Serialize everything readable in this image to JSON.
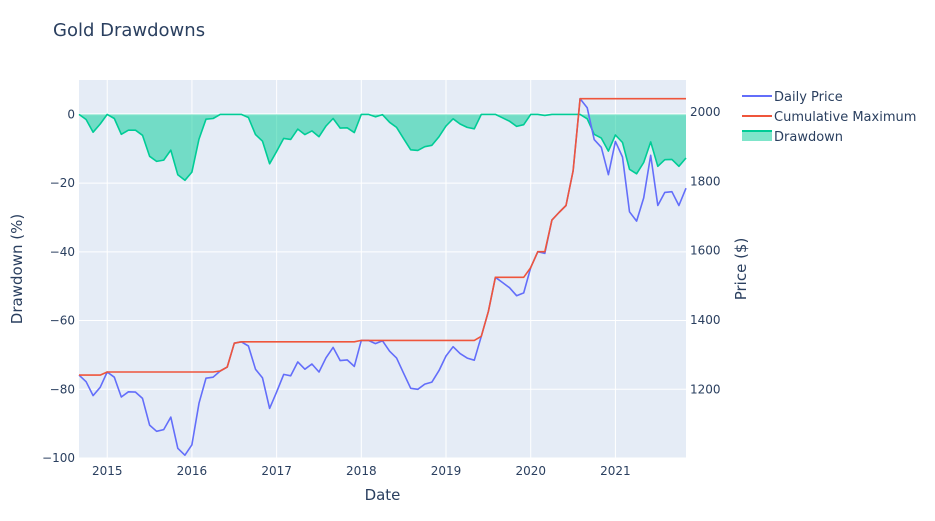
{
  "chart_data": {
    "type": "line",
    "title": "Gold Drawdowns",
    "xlabel": "Date",
    "ylabel": "Drawdown (%)",
    "y2label": "Price ($)",
    "x_ticks": [
      "2015",
      "2016",
      "2017",
      "2018",
      "2019",
      "2020",
      "2021"
    ],
    "y_ticks": [
      0,
      -20,
      -40,
      -60,
      -80,
      -100
    ],
    "y2_ticks": [
      2000,
      1800,
      1600,
      1400,
      1200
    ],
    "xlim": [
      "2014-09",
      "2021-11"
    ],
    "ylim": [
      -100,
      10
    ],
    "y2lim": [
      1002,
      2092
    ],
    "grid": true,
    "legend_position": "right",
    "colors": {
      "background": "#e5ecf6",
      "grid": "#ffffff",
      "daily_price": "#636efa",
      "cumulative_max": "#ef553b",
      "drawdown": "#00cc96",
      "drawdown_fill": "rgba(0,204,150,0.5)"
    },
    "dates": [
      "2014-09",
      "2014-10",
      "2014-11",
      "2014-12",
      "2015-01",
      "2015-02",
      "2015-03",
      "2015-04",
      "2015-05",
      "2015-06",
      "2015-07",
      "2015-08",
      "2015-09",
      "2015-10",
      "2015-11",
      "2015-12",
      "2016-01",
      "2016-02",
      "2016-03",
      "2016-04",
      "2016-05",
      "2016-06",
      "2016-07",
      "2016-08",
      "2016-09",
      "2016-10",
      "2016-11",
      "2016-12",
      "2017-01",
      "2017-02",
      "2017-03",
      "2017-04",
      "2017-05",
      "2017-06",
      "2017-07",
      "2017-08",
      "2017-09",
      "2017-10",
      "2017-11",
      "2017-12",
      "2018-01",
      "2018-02",
      "2018-03",
      "2018-04",
      "2018-05",
      "2018-06",
      "2018-07",
      "2018-08",
      "2018-09",
      "2018-10",
      "2018-11",
      "2018-12",
      "2019-01",
      "2019-02",
      "2019-03",
      "2019-04",
      "2019-05",
      "2019-06",
      "2019-07",
      "2019-08",
      "2019-09",
      "2019-10",
      "2019-11",
      "2019-12",
      "2020-01",
      "2020-02",
      "2020-03",
      "2020-04",
      "2020-05",
      "2020-06",
      "2020-07",
      "2020-08",
      "2020-09",
      "2020-10",
      "2020-11",
      "2020-12",
      "2021-01",
      "2021-02",
      "2021-03",
      "2021-04",
      "2021-05",
      "2021-06",
      "2021-07",
      "2021-08",
      "2021-09",
      "2021-10",
      "2021-11"
    ],
    "series": [
      {
        "name": "Daily Price",
        "axis": "y2",
        "values": [
          1241,
          1222,
          1182,
          1206,
          1250,
          1235,
          1178,
          1193,
          1192,
          1174,
          1097,
          1079,
          1084,
          1120,
          1030,
          1010,
          1040,
          1160,
          1232,
          1235,
          1253,
          1264,
          1333,
          1337,
          1325,
          1258,
          1233,
          1145,
          1192,
          1243,
          1239,
          1279,
          1258,
          1273,
          1250,
          1291,
          1321,
          1283,
          1285,
          1266,
          1341,
          1341,
          1332,
          1340,
          1310,
          1290,
          1246,
          1203,
          1200,
          1215,
          1221,
          1254,
          1296,
          1323,
          1303,
          1290,
          1284,
          1353,
          1425,
          1523,
          1508,
          1493,
          1470,
          1478,
          1551,
          1597,
          1592,
          1688,
          1710,
          1730,
          1830,
          2038,
          2012,
          1920,
          1898,
          1819,
          1915,
          1870,
          1712,
          1685,
          1752,
          1875,
          1730,
          1768,
          1770,
          1730,
          1780
        ]
      },
      {
        "name": "Cumulative Maximum",
        "axis": "y2",
        "values": [
          1241,
          1241,
          1241,
          1241,
          1250,
          1250,
          1250,
          1250,
          1250,
          1250,
          1250,
          1250,
          1250,
          1250,
          1250,
          1250,
          1250,
          1250,
          1250,
          1250,
          1253,
          1264,
          1333,
          1337,
          1337,
          1337,
          1337,
          1337,
          1337,
          1337,
          1337,
          1337,
          1337,
          1337,
          1337,
          1337,
          1337,
          1337,
          1337,
          1337,
          1341,
          1341,
          1341,
          1341,
          1341,
          1341,
          1341,
          1341,
          1341,
          1341,
          1341,
          1341,
          1341,
          1341,
          1341,
          1341,
          1341,
          1353,
          1425,
          1523,
          1523,
          1523,
          1523,
          1523,
          1551,
          1597,
          1597,
          1688,
          1710,
          1730,
          1830,
          2038,
          2038,
          2038,
          2038,
          2038,
          2038,
          2038,
          2038,
          2038,
          2038,
          2038,
          2038,
          2038,
          2038,
          2038,
          2038
        ]
      },
      {
        "name": "Drawdown",
        "axis": "y",
        "fill": "tozeroy",
        "values": [
          0,
          -1.5,
          -5.2,
          -2.8,
          0,
          -1.2,
          -5.8,
          -4.6,
          -4.6,
          -6.1,
          -12.2,
          -13.7,
          -13.3,
          -10.4,
          -17.6,
          -19.2,
          -16.8,
          -7.2,
          -1.4,
          -1.2,
          0,
          0,
          0,
          0,
          -0.9,
          -5.9,
          -7.8,
          -14.4,
          -10.8,
          -7.0,
          -7.3,
          -4.3,
          -5.9,
          -4.8,
          -6.5,
          -3.4,
          -1.2,
          -4.0,
          -3.9,
          -5.3,
          0,
          0,
          -0.7,
          -0.1,
          -2.3,
          -3.8,
          -7.1,
          -10.3,
          -10.5,
          -9.4,
          -9.0,
          -6.5,
          -3.4,
          -1.3,
          -2.8,
          -3.8,
          -4.2,
          0,
          0,
          0,
          -1.0,
          -2.0,
          -3.5,
          -3.0,
          0,
          0,
          -0.3,
          0,
          0,
          0,
          0,
          0,
          -1.3,
          -5.8,
          -6.9,
          -10.7,
          -6.0,
          -8.2,
          -16.0,
          -17.3,
          -14.0,
          -8.0,
          -15.1,
          -13.2,
          -13.1,
          -15.1,
          -12.7
        ]
      }
    ]
  }
}
